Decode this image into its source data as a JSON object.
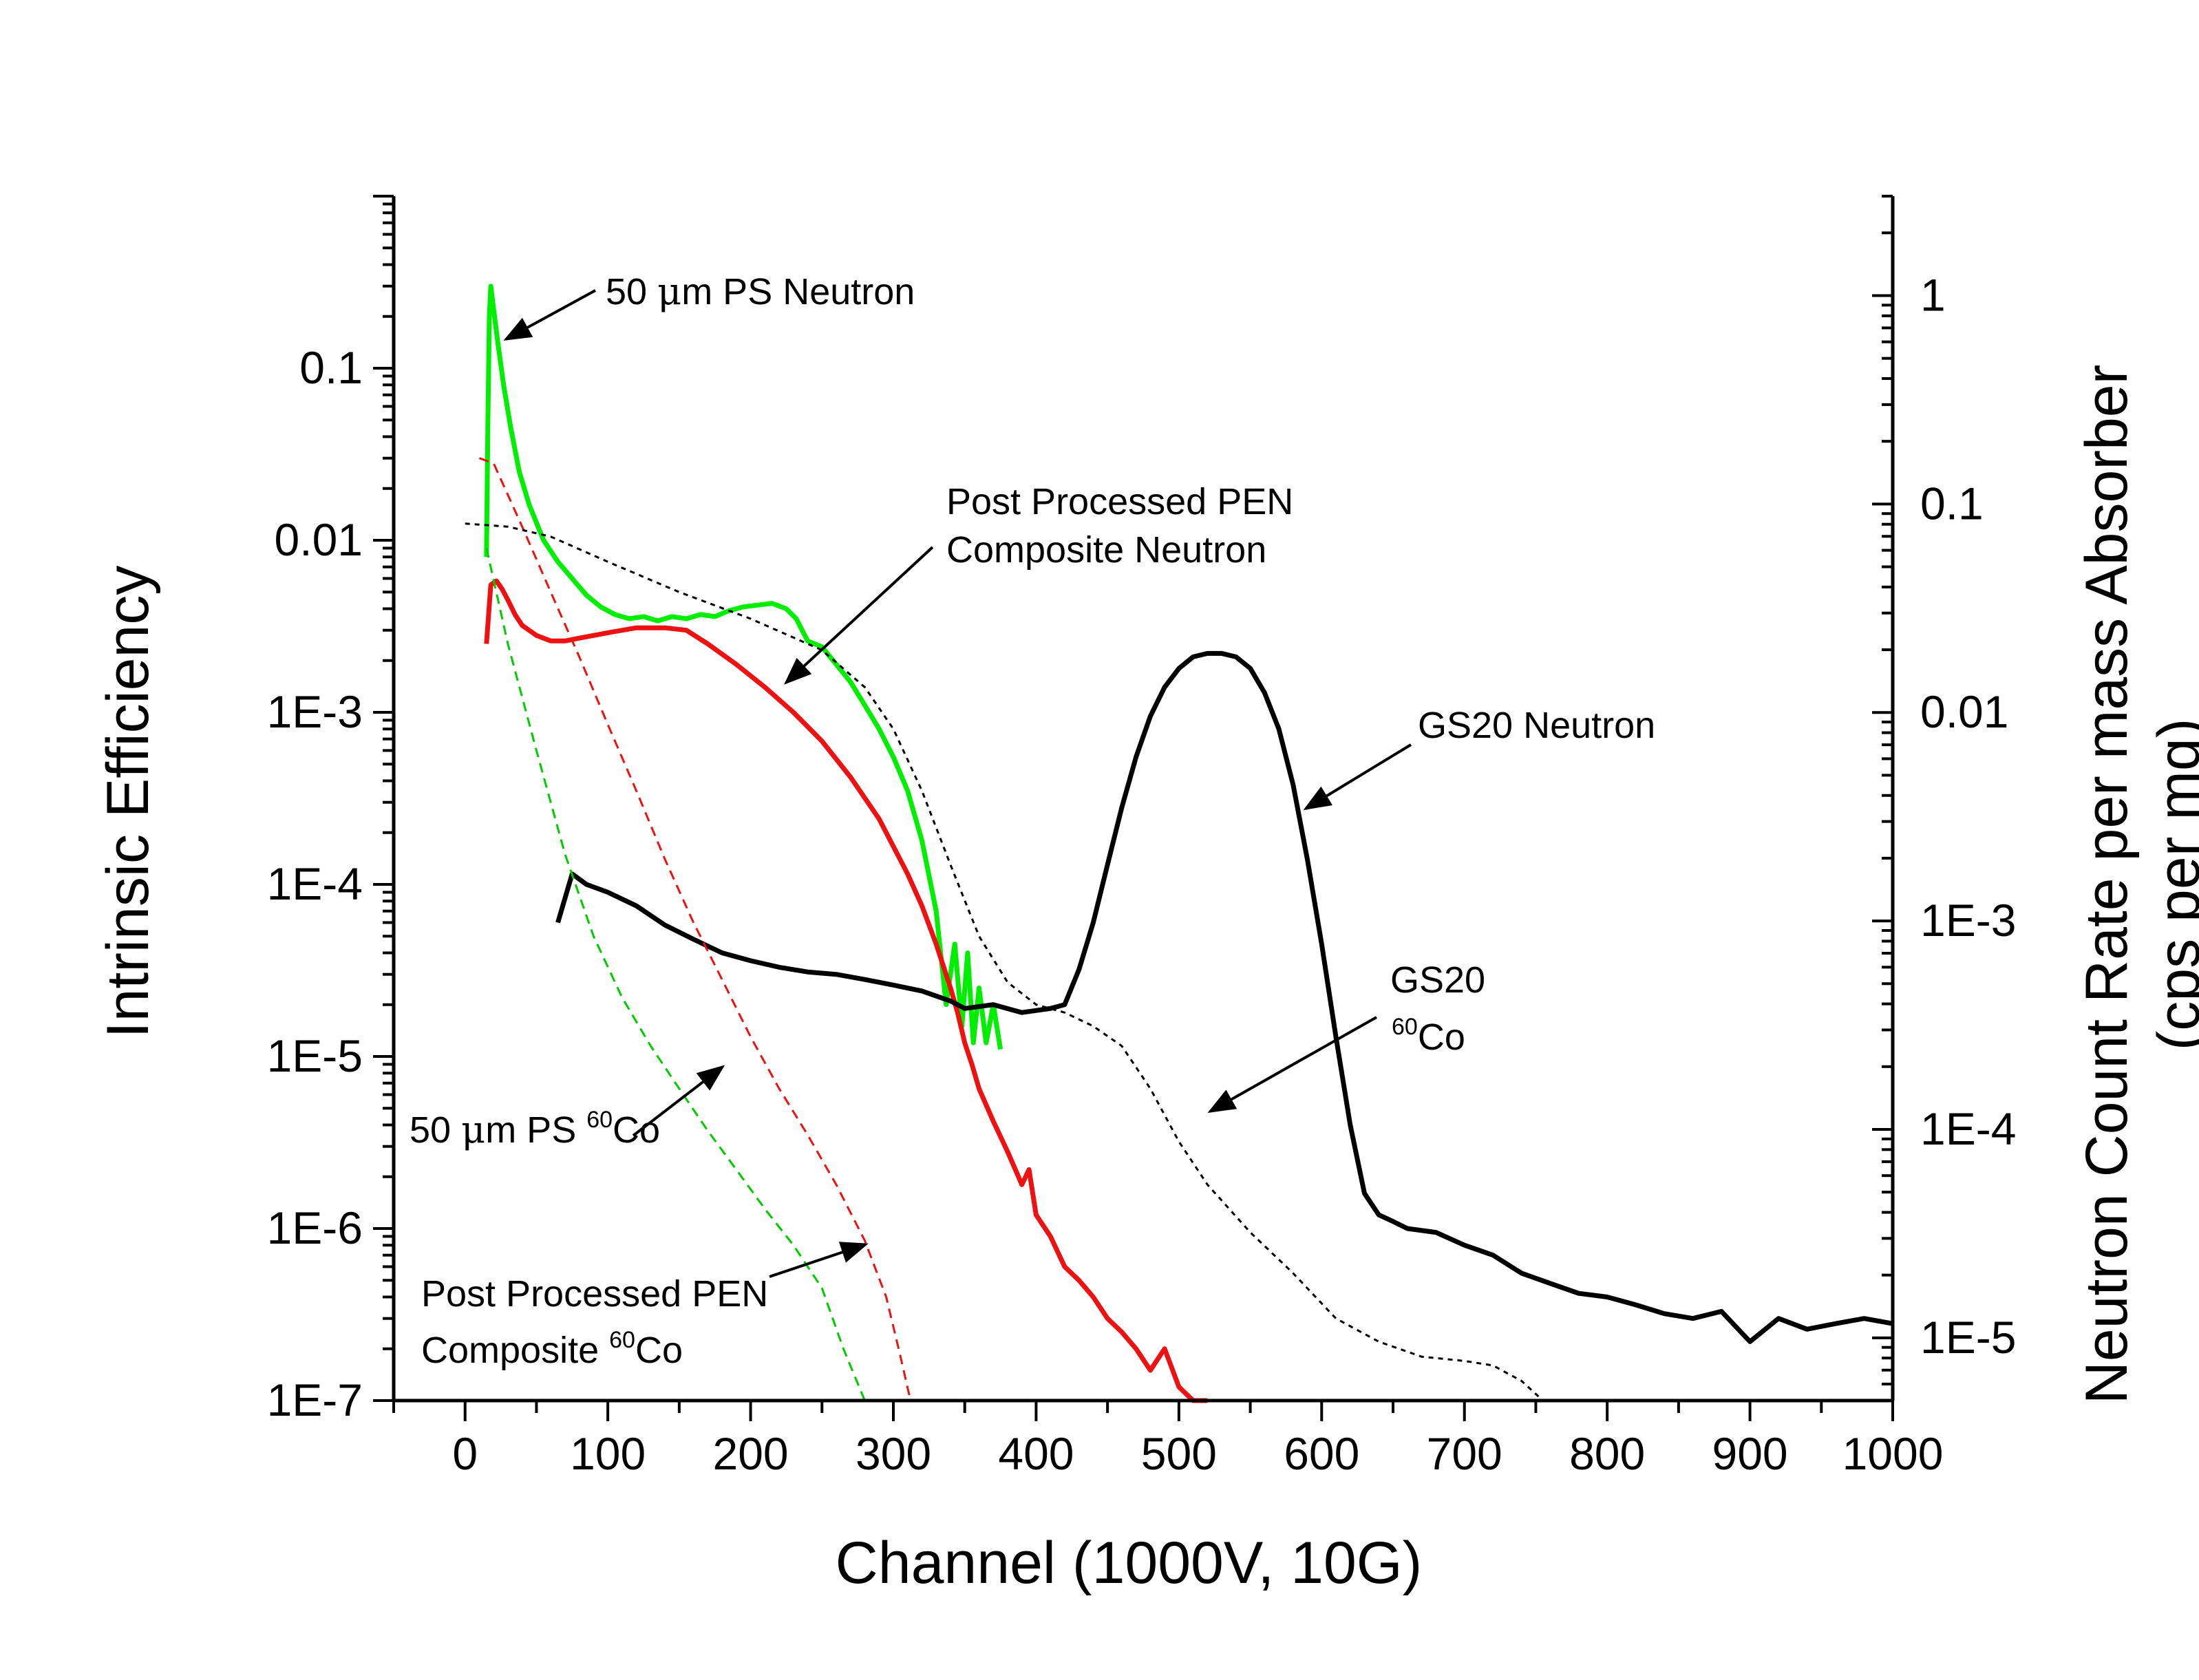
{
  "chart_data": {
    "type": "line",
    "title": "",
    "xlabel": "Channel (1000V, 10G)",
    "ylabel_left": "Intrinsic Efficiency",
    "ylabel_right_line1": "Neutron Count Rate per mass Absorber",
    "ylabel_right_line2": "(cps per mg)",
    "xlim": [
      -50,
      1000
    ],
    "ylim_left": [
      1e-07,
      1
    ],
    "ylim_right": [
      5e-06,
      3
    ],
    "y_scale": "log",
    "grid": false,
    "x_ticks": [
      0,
      100,
      200,
      300,
      400,
      500,
      600,
      700,
      800,
      900,
      1000
    ],
    "x_tick_labels": [
      "0",
      "100",
      "200",
      "300",
      "400",
      "500",
      "600",
      "700",
      "800",
      "900",
      "1000"
    ],
    "y_left_ticks": [
      0.1,
      0.01,
      0.001,
      0.0001,
      1e-05,
      1e-06,
      1e-07
    ],
    "y_left_tick_labels": [
      "0.1",
      "0.01",
      "1E-3",
      "1E-4",
      "1E-5",
      "1E-6",
      "1E-7"
    ],
    "y_right_ticks": [
      1,
      0.1,
      0.01,
      0.001,
      0.0001,
      1e-05
    ],
    "y_right_tick_labels": [
      "1",
      "0.1",
      "0.01",
      "1E-3",
      "1E-4",
      "1E-5"
    ],
    "annotations": {
      "ps_neutron": {
        "pre": "50 ",
        "mu": "μ",
        "post": "m PS Neutron"
      },
      "pen_neutron_line1": "Post Processed PEN",
      "pen_neutron_line2": "Composite Neutron",
      "gs20_neutron": "GS20 Neutron",
      "gs20_co_line1": "GS20",
      "gs20_co_sup": "60",
      "gs20_co_post": "Co",
      "ps_co": {
        "pre": "50 ",
        "mu": "μ",
        "mid": "m PS ",
        "sup": "60",
        "post": "Co"
      },
      "pen_co_line1": "Post Processed PEN",
      "pen_co_line2": {
        "pre": "Composite ",
        "sup": "60",
        "post": "Co"
      }
    },
    "series": [
      {
        "key": "ps_neutron",
        "color": "#00ee00",
        "style": "solid",
        "axis": "left",
        "x": [
          15,
          16,
          17,
          18,
          20,
          23,
          27,
          32,
          38,
          45,
          55,
          65,
          75,
          85,
          95,
          105,
          115,
          125,
          135,
          145,
          155,
          165,
          175,
          185,
          195,
          205,
          215,
          225,
          232,
          240,
          250,
          260,
          270,
          280,
          290,
          300,
          310,
          320,
          330,
          337,
          343,
          348,
          352,
          356,
          360,
          365,
          370,
          375
        ],
        "y": [
          0.008,
          0.05,
          0.2,
          0.3,
          0.22,
          0.14,
          0.08,
          0.045,
          0.025,
          0.016,
          0.01,
          0.0075,
          0.006,
          0.0048,
          0.0041,
          0.0037,
          0.0035,
          0.0036,
          0.0034,
          0.0036,
          0.0035,
          0.0037,
          0.0036,
          0.0039,
          0.0041,
          0.0042,
          0.0043,
          0.004,
          0.0035,
          0.0026,
          0.0024,
          0.0019,
          0.0015,
          0.0011,
          0.0008,
          0.00055,
          0.00035,
          0.00018,
          7e-05,
          2e-05,
          4.5e-05,
          1.5e-05,
          4e-05,
          1.2e-05,
          2.5e-05,
          1.2e-05,
          2e-05,
          1.1e-05
        ]
      },
      {
        "key": "pen_neutron",
        "color": "#ee1111",
        "style": "solid",
        "axis": "left",
        "x": [
          15,
          18,
          22,
          26,
          30,
          35,
          40,
          50,
          60,
          70,
          80,
          100,
          120,
          140,
          155,
          170,
          190,
          210,
          230,
          250,
          270,
          290,
          310,
          320,
          330,
          340,
          345,
          350,
          355,
          360,
          370,
          380,
          390,
          395,
          400,
          410,
          420,
          430,
          440,
          450,
          460,
          470,
          480,
          490,
          500,
          510,
          520
        ],
        "y": [
          0.0025,
          0.0055,
          0.0058,
          0.0052,
          0.0045,
          0.0037,
          0.0032,
          0.0028,
          0.0026,
          0.0026,
          0.0027,
          0.0029,
          0.0031,
          0.0031,
          0.003,
          0.0025,
          0.0019,
          0.0014,
          0.001,
          0.00068,
          0.00042,
          0.00024,
          0.000115,
          7.5e-05,
          4.5e-05,
          2.5e-05,
          1.8e-05,
          1.2e-05,
          9e-06,
          6.5e-06,
          4.2e-06,
          2.8e-06,
          1.8e-06,
          2.2e-06,
          1.2e-06,
          9e-07,
          6e-07,
          5e-07,
          4e-07,
          3e-07,
          2.5e-07,
          2e-07,
          1.5e-07,
          2e-07,
          1.2e-07,
          1e-07,
          1e-07
        ]
      },
      {
        "key": "gs20_neutron",
        "color": "#000000",
        "style": "solid",
        "axis": "left",
        "x": [
          65,
          75,
          85,
          100,
          120,
          140,
          160,
          180,
          200,
          220,
          240,
          260,
          280,
          300,
          320,
          340,
          350,
          370,
          390,
          410,
          420,
          430,
          440,
          450,
          460,
          470,
          480,
          490,
          500,
          510,
          520,
          530,
          540,
          550,
          560,
          570,
          580,
          590,
          600,
          610,
          620,
          630,
          640,
          650,
          660,
          680,
          700,
          720,
          740,
          760,
          780,
          800,
          820,
          840,
          860,
          880,
          900,
          920,
          940,
          960,
          980,
          1000
        ],
        "y": [
          6e-05,
          0.000115,
          0.0001,
          9e-05,
          7.5e-05,
          5.8e-05,
          4.8e-05,
          4e-05,
          3.6e-05,
          3.3e-05,
          3.1e-05,
          3e-05,
          2.8e-05,
          2.6e-05,
          2.4e-05,
          2.1e-05,
          1.9e-05,
          2e-05,
          1.8e-05,
          1.9e-05,
          2e-05,
          3.2e-05,
          6e-05,
          0.00013,
          0.00028,
          0.00055,
          0.00095,
          0.0014,
          0.0018,
          0.0021,
          0.0022,
          0.0022,
          0.0021,
          0.0018,
          0.0013,
          0.0008,
          0.00038,
          0.00014,
          4.5e-05,
          1.3e-05,
          4e-06,
          1.6e-06,
          1.2e-06,
          1.1e-06,
          1e-06,
          9.5e-07,
          8e-07,
          7e-07,
          5.5e-07,
          4.8e-07,
          4.2e-07,
          4e-07,
          3.6e-07,
          3.2e-07,
          3e-07,
          3.3e-07,
          2.2e-07,
          3e-07,
          2.6e-07,
          2.8e-07,
          3e-07,
          2.8e-07
        ]
      },
      {
        "key": "ps_co",
        "color": "#00cc00",
        "style": "dashed",
        "axis": "left",
        "x": [
          15,
          30,
          50,
          70,
          90,
          110,
          130,
          150,
          170,
          190,
          210,
          230,
          250,
          265,
          280
        ],
        "y": [
          0.009,
          0.0025,
          0.0006,
          0.00015,
          5e-05,
          2.2e-05,
          1.15e-05,
          6.5e-06,
          3.7e-06,
          2.2e-06,
          1.3e-06,
          8e-07,
          4.5e-07,
          2e-07,
          1e-07
        ]
      },
      {
        "key": "pen_co",
        "color": "#ee1111",
        "style": "dashed",
        "axis": "left",
        "x": [
          10,
          20,
          40,
          60,
          80,
          100,
          120,
          140,
          160,
          180,
          200,
          220,
          240,
          260,
          280,
          295,
          305,
          312
        ],
        "y": [
          0.03,
          0.028,
          0.012,
          0.005,
          0.0021,
          0.00085,
          0.00035,
          0.00014,
          6e-05,
          2.8e-05,
          1.3e-05,
          6.5e-06,
          3.5e-06,
          1.8e-06,
          8.5e-07,
          4e-07,
          1.8e-07,
          1e-07
        ]
      },
      {
        "key": "gs20_co",
        "color": "#000000",
        "style": "dotted",
        "axis": "left",
        "x": [
          0,
          30,
          60,
          100,
          150,
          200,
          250,
          280,
          300,
          320,
          340,
          360,
          380,
          400,
          420,
          440,
          460,
          480,
          500,
          520,
          550,
          580,
          610,
          640,
          670,
          700,
          720,
          740,
          755
        ],
        "y": [
          0.0125,
          0.012,
          0.0105,
          0.0075,
          0.005,
          0.0035,
          0.0023,
          0.0014,
          0.0008,
          0.00035,
          0.00013,
          5e-05,
          2.7e-05,
          2e-05,
          1.8e-05,
          1.5e-05,
          1.15e-05,
          6.5e-06,
          3.2e-06,
          1.8e-06,
          9.5e-07,
          5.5e-07,
          3e-07,
          2.2e-07,
          1.8e-07,
          1.7e-07,
          1.6e-07,
          1.3e-07,
          1e-07
        ]
      }
    ]
  }
}
